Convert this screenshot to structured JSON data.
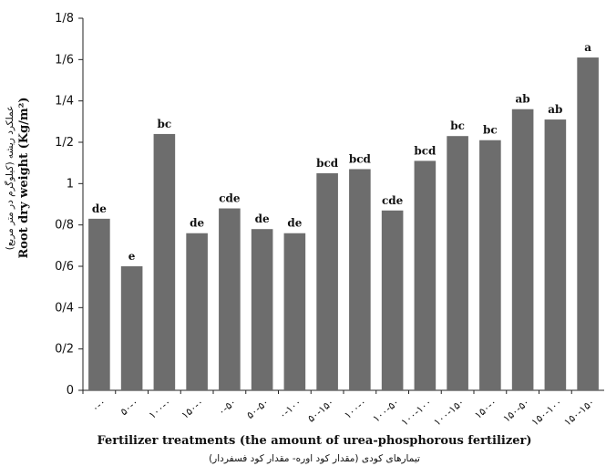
{
  "chart_data": {
    "type": "bar",
    "title": "",
    "xlabel": "Fertilizer treatments (the amount of urea-phosphorous fertilizer)",
    "xlabel_fa": "تیمارهای کودی (مقدار کود اوره- مقدار کود فسفردار)",
    "ylabel": "Root dry weight (Kg/m²)",
    "ylabel_fa": "عملکرد ریشه (کیلوگرم در متر مربع)",
    "ylim": [
      0,
      1.8
    ],
    "yticks": [
      0,
      0.2,
      0.4,
      0.6,
      0.8,
      1.0,
      1.2,
      1.4,
      1.6,
      1.8
    ],
    "ytick_labels": [
      "0",
      "0/2",
      "0/4",
      "0/6",
      "0/8",
      "1",
      "1/2",
      "1/4",
      "1/6",
      "1/8"
    ],
    "grid": false,
    "legend": "none",
    "bar_color": "#6d6d6d",
    "categories": [
      "۰-۰",
      "۵۰-۰",
      "۱۰۰-۰",
      "۱۵۰-۰",
      "۰-۵۰",
      "۵۰-۵۰",
      "۰-۱۰۰",
      "۵۰-۱۵۰",
      "۱۰۰-۰",
      "۱۰۰-۵۰",
      "۱۰۰-۱۰۰",
      "۱۰۰-۱۵۰",
      "۱۵۰-۰",
      "۱۵۰-۵۰",
      "۱۵۰-۱۰۰",
      "۱۵۰-۱۵۰"
    ],
    "values": [
      0.83,
      0.6,
      1.24,
      0.76,
      0.88,
      0.78,
      0.76,
      1.05,
      1.07,
      0.87,
      1.11,
      1.23,
      1.21,
      1.36,
      1.31,
      1.61
    ],
    "bar_labels": [
      "de",
      "e",
      "bc",
      "de",
      "cde",
      "de",
      "de",
      "bcd",
      "bcd",
      "cde",
      "bcd",
      "bc",
      "bc",
      "ab",
      "ab",
      "a"
    ]
  }
}
